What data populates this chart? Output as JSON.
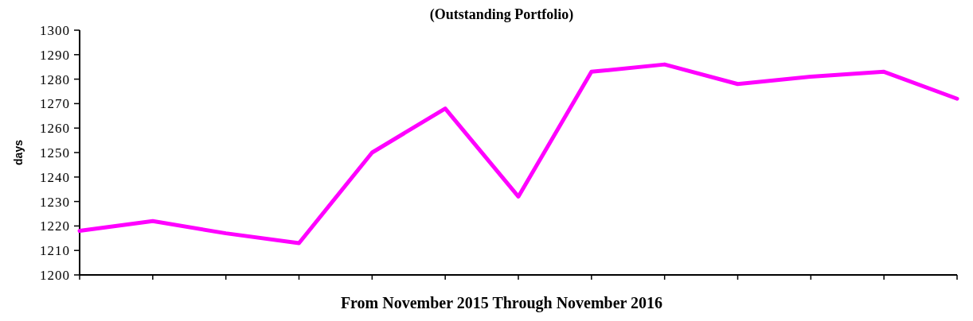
{
  "chart_data": {
    "type": "line",
    "title": "(Outstanding Portfolio)",
    "xlabel": "From November 2015 Through November 2016",
    "ylabel": "days",
    "categories": [
      null,
      null,
      null,
      null,
      null,
      null,
      null,
      null,
      null,
      null,
      null,
      null,
      null
    ],
    "series": [
      {
        "color": "#ff00ff",
        "values": [
          1218,
          1222,
          1217,
          1213,
          1250,
          1268,
          1232,
          1283,
          1286,
          1278,
          1281,
          1283,
          1272
        ]
      }
    ],
    "ylim": [
      1200,
      1300
    ],
    "yticks": [
      1200,
      1210,
      1220,
      1230,
      1240,
      1250,
      1260,
      1270,
      1280,
      1290,
      1300
    ],
    "marker": "none",
    "line_style": "solid"
  }
}
